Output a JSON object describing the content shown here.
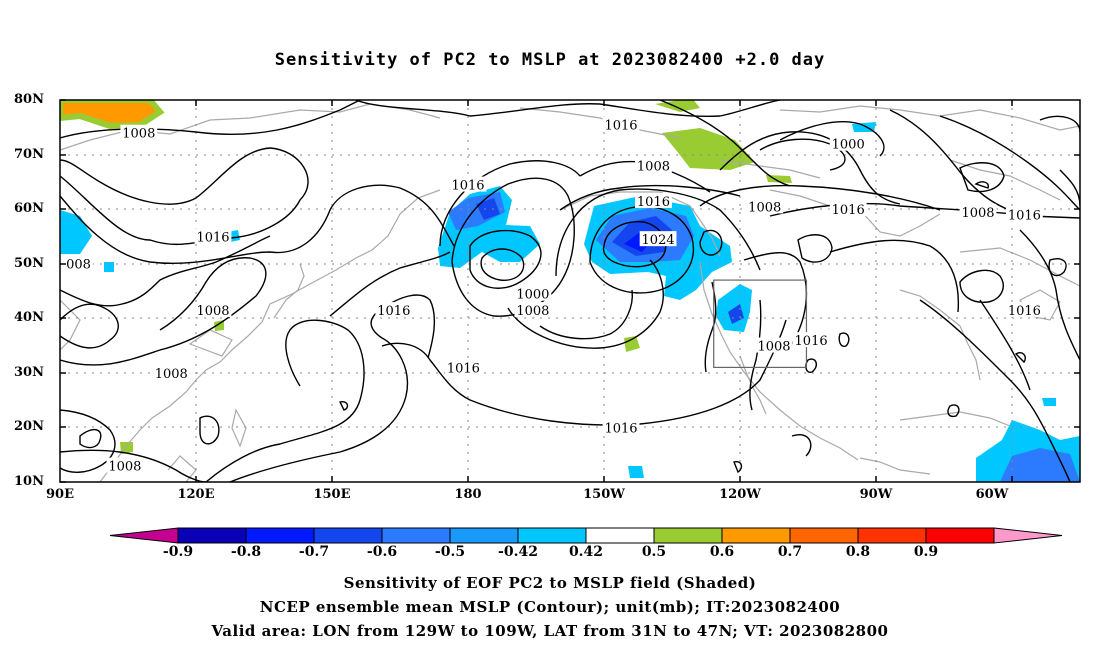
{
  "title": "Sensitivity of PC2 to MSLP at 2023082400 +2.0 day",
  "lat_labels": [
    "80N",
    "70N",
    "60N",
    "50N",
    "40N",
    "30N",
    "20N",
    "10N"
  ],
  "lon_labels": [
    "90E",
    "120E",
    "150E",
    "180",
    "150W",
    "120W",
    "90W",
    "60W"
  ],
  "contour_labels": [
    {
      "text": "1016",
      "lon": -149,
      "lat": 75.5
    },
    {
      "text": "1008",
      "lon": 107,
      "lat": 74
    },
    {
      "text": "1008",
      "lon": -142,
      "lat": 68
    },
    {
      "text": "1000",
      "lon": -100,
      "lat": 72
    },
    {
      "text": "1016",
      "lon": 178,
      "lat": 64.5
    },
    {
      "text": "1016",
      "lon": -142,
      "lat": 61.5
    },
    {
      "text": "1024",
      "lon": -141,
      "lat": 54.5
    },
    {
      "text": "1008",
      "lon": -118,
      "lat": 60.5
    },
    {
      "text": "1016",
      "lon": -100,
      "lat": 60
    },
    {
      "text": "1008",
      "lon": -72,
      "lat": 59.5
    },
    {
      "text": "1016",
      "lon": -62,
      "lat": 59
    },
    {
      "text": "1016",
      "lon": 123,
      "lat": 55
    },
    {
      "text": "008",
      "lon": 94,
      "lat": 50
    },
    {
      "text": "1016",
      "lon": -62,
      "lat": 41.5
    },
    {
      "text": "1008",
      "lon": 123,
      "lat": 41.5
    },
    {
      "text": "1016",
      "lon": 162,
      "lat": 41.5
    },
    {
      "text": "1000",
      "lon": -168,
      "lat": 44.5
    },
    {
      "text": "1008",
      "lon": -168,
      "lat": 41.5
    },
    {
      "text": "1016",
      "lon": -108,
      "lat": 36
    },
    {
      "text": "1008",
      "lon": -116,
      "lat": 35
    },
    {
      "text": "1016",
      "lon": 177,
      "lat": 31
    },
    {
      "text": "1008",
      "lon": 114,
      "lat": 30
    },
    {
      "text": "1016",
      "lon": -149,
      "lat": 20
    },
    {
      "text": "1008",
      "lon": 104,
      "lat": 13
    }
  ],
  "valid_area": {
    "lon_min": -129,
    "lon_max": -109,
    "lat_min": 31,
    "lat_max": 47
  },
  "colorbar": {
    "labels": [
      "-0.9",
      "-0.8",
      "-0.7",
      "-0.6",
      "-0.5",
      "-0.42",
      "0.42",
      "0.5",
      "0.6",
      "0.7",
      "0.8",
      "0.9"
    ],
    "colors": [
      "#c40090",
      "#0a00b8",
      "#0019ff",
      "#1446ee",
      "#2c7bff",
      "#1999f9",
      "#00c7ff",
      "#ffffff",
      "#99cc33",
      "#ff9900",
      "#ff6600",
      "#ff3300",
      "#ff0000",
      "#ff99cc"
    ]
  },
  "captions": [
    "Sensitivity of EOF PC2 to MSLP field (Shaded)",
    "NCEP ensemble mean MSLP (Contour); unit(mb); IT:2023082400",
    "Valid area: LON from 129W to 109W, LAT from 31N to 47N; VT: 2023082800"
  ],
  "colors": {
    "coast": "#a9a9a9",
    "contour": "#000000",
    "grid": "#888888"
  }
}
